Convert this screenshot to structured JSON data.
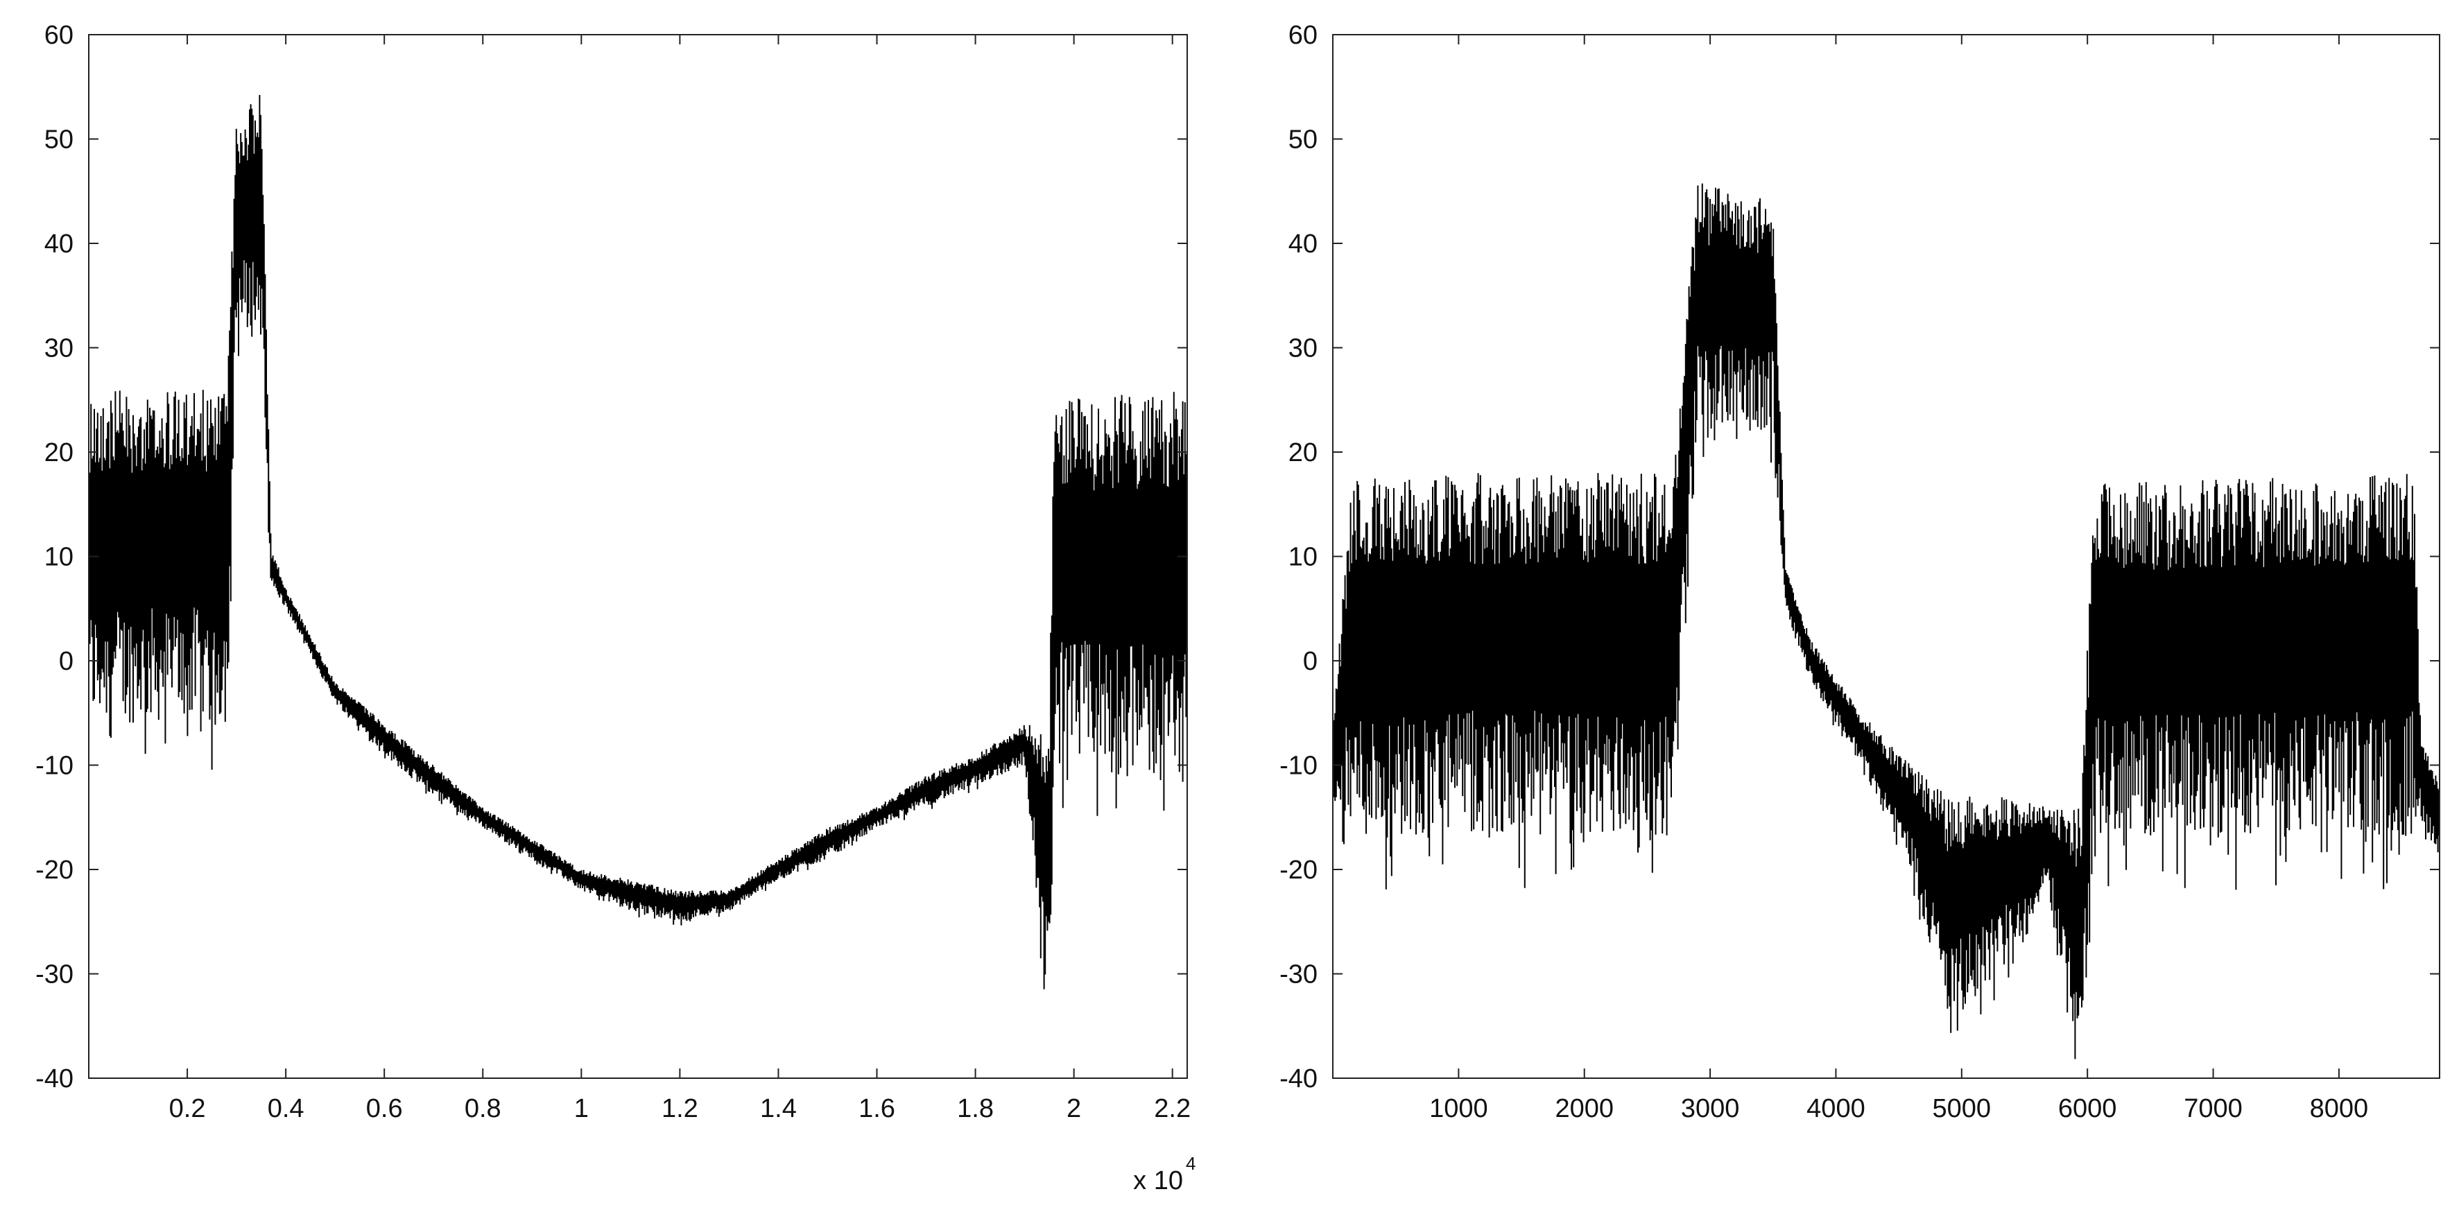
{
  "chart_data": [
    {
      "type": "line",
      "title": "",
      "xlabel": "",
      "ylabel": "",
      "xlim": [
        0,
        22300
      ],
      "ylim": [
        -40,
        60
      ],
      "x_exponent_label": "x 10",
      "x_exponent_power": "4",
      "x_ticks": [
        2000,
        4000,
        6000,
        8000,
        10000,
        12000,
        14000,
        16000,
        18000,
        20000,
        22000
      ],
      "x_tick_labels": [
        "0.2",
        "0.4",
        "0.6",
        "0.8",
        "1",
        "1.2",
        "1.4",
        "1.6",
        "1.8",
        "2",
        "2.2"
      ],
      "y_ticks": [
        60,
        50,
        40,
        30,
        20,
        10,
        0,
        -10,
        -20,
        -30,
        -40
      ],
      "y_tick_labels": [
        "60",
        "50",
        "40",
        "30",
        "20",
        "10",
        "0",
        "-10",
        "-20",
        "-30",
        "-40"
      ],
      "grid": false,
      "series": [
        {
          "color": "#000000",
          "x": [
            0,
            2800,
            3000,
            3500,
            3700,
            4000,
            5000,
            6000,
            7000,
            8000,
            9000,
            10000,
            11000,
            12000,
            13000,
            14000,
            15000,
            16000,
            17000,
            18000,
            19000,
            19500,
            19600,
            22300
          ],
          "y_high": [
            26,
            26,
            52,
            55,
            11,
            7,
            -2,
            -6,
            -10,
            -14,
            -17,
            -20,
            -21,
            -22,
            -22,
            -19,
            -16,
            -14,
            -11,
            -9,
            -6,
            -6,
            25,
            26
          ],
          "y_low": [
            -6,
            -6,
            31,
            31,
            7,
            5,
            -4,
            -9,
            -13,
            -16,
            -19,
            -22,
            -24,
            -25,
            -24,
            -21,
            -19,
            -16,
            -14,
            -12,
            -10,
            -35,
            -10,
            -12
          ]
        }
      ]
    },
    {
      "type": "line",
      "title": "",
      "xlabel": "",
      "ylabel": "",
      "xlim": [
        0,
        8800
      ],
      "ylim": [
        -40,
        60
      ],
      "x_ticks": [
        1000,
        2000,
        3000,
        4000,
        5000,
        6000,
        7000,
        8000
      ],
      "x_tick_labels": [
        "1000",
        "2000",
        "3000",
        "4000",
        "5000",
        "6000",
        "7000",
        "8000"
      ],
      "y_ticks": [
        60,
        50,
        40,
        30,
        20,
        10,
        0,
        -10,
        -20,
        -30,
        -40
      ],
      "y_tick_labels": [
        "60",
        "50",
        "40",
        "30",
        "20",
        "10",
        "0",
        "-10",
        "-20",
        "-30",
        "-40"
      ],
      "grid": false,
      "series": [
        {
          "color": "#000000",
          "x": [
            0,
            150,
            2700,
            2900,
            3500,
            3600,
            3800,
            4200,
            4600,
            4900,
            5300,
            5700,
            5950,
            6050,
            8600,
            8650,
            8800
          ],
          "y_high": [
            -7,
            18,
            18,
            46,
            44,
            9,
            2,
            -5,
            -10,
            -13,
            -13,
            -14,
            -14,
            17,
            18,
            -7,
            -12
          ],
          "y_low": [
            -12,
            -17,
            -17,
            22,
            22,
            5,
            -2,
            -10,
            -20,
            -35,
            -30,
            -22,
            -40,
            -17,
            -17,
            -15,
            -19
          ]
        }
      ]
    }
  ]
}
